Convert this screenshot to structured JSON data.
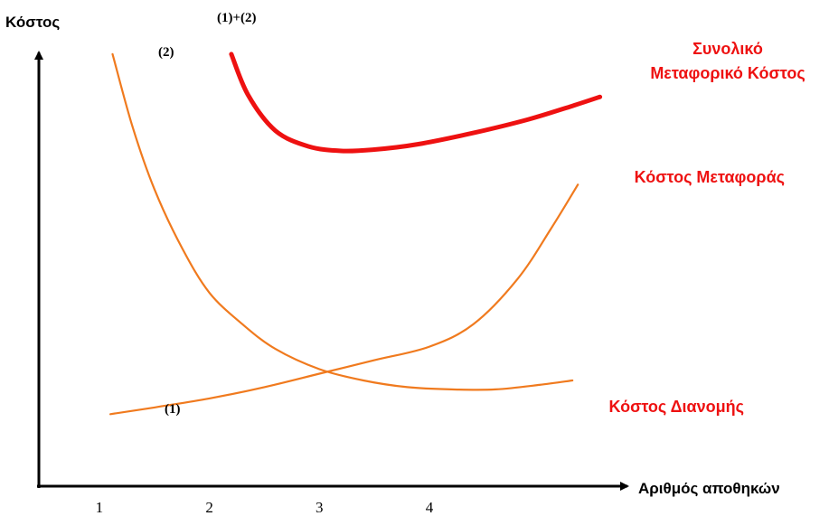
{
  "chart_data": {
    "type": "line",
    "title": "",
    "ylabel": "Κόστος",
    "xlabel": "Αριθμός αποθηκών",
    "x_ticks": [
      "1",
      "2",
      "3",
      "4"
    ],
    "xlim": [
      0.45,
      5.8
    ],
    "ylim": [
      0,
      10
    ],
    "grid": false,
    "colors": {
      "component": "#F07A1E",
      "total": "#EE1111",
      "axis": "#000000",
      "label": "#EE1111"
    },
    "series": [
      {
        "tag": "(1)",
        "name": "Κόστος Μεταφοράς",
        "name_lines": [
          "Κόστος Μεταφοράς"
        ],
        "x": [
          1.1,
          1.5,
          2.0,
          2.5,
          3.0,
          3.5,
          4.0,
          4.4,
          4.8,
          5.1,
          5.35
        ],
        "y": [
          1.6,
          1.75,
          1.95,
          2.2,
          2.5,
          2.8,
          3.1,
          3.6,
          4.6,
          5.7,
          6.7
        ]
      },
      {
        "tag": "(2)",
        "name": "Κόστος Διανομής",
        "name_lines": [
          "Κόστος Διανομής"
        ],
        "x": [
          1.12,
          1.3,
          1.5,
          1.75,
          2.0,
          2.3,
          2.6,
          3.0,
          3.4,
          3.8,
          4.2,
          4.6,
          5.0,
          5.3
        ],
        "y": [
          9.6,
          8.0,
          6.6,
          5.3,
          4.3,
          3.6,
          3.05,
          2.6,
          2.35,
          2.2,
          2.15,
          2.15,
          2.25,
          2.35
        ]
      },
      {
        "tag": "(1)+(2)",
        "name": "Συνολικό Μεταφορικό Κόστος",
        "name_lines": [
          "Συνολικό",
          "Μεταφορικό Κόστος"
        ],
        "x": [
          2.2,
          2.35,
          2.6,
          2.9,
          3.2,
          3.5,
          3.9,
          4.4,
          4.9,
          5.3,
          5.55
        ],
        "y": [
          9.6,
          8.7,
          7.9,
          7.55,
          7.45,
          7.48,
          7.6,
          7.85,
          8.15,
          8.45,
          8.65
        ]
      }
    ]
  }
}
